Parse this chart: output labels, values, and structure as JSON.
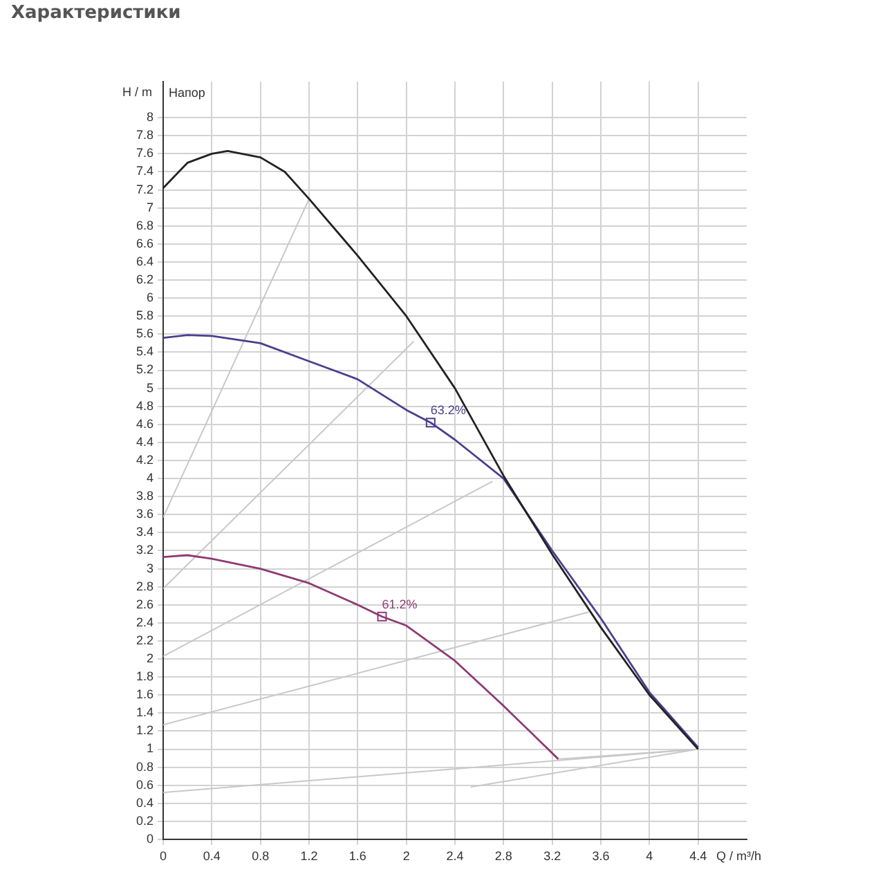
{
  "chart_data": {
    "type": "line",
    "title": "Характеристики",
    "xlabel": "Q / m³/h",
    "ylabel": "H / m",
    "xlim": [
      0,
      4.8
    ],
    "ylim": [
      0,
      8.4
    ],
    "xticks": [
      0,
      0.4,
      0.8,
      1.2,
      1.6,
      2,
      2.4,
      2.8,
      3.2,
      3.6,
      4,
      4.4
    ],
    "yticks": [
      0,
      0.2,
      0.4,
      0.6,
      0.8,
      1,
      1.2,
      1.4,
      1.6,
      1.8,
      2,
      2.2,
      2.4,
      2.6,
      2.8,
      3,
      3.2,
      3.4,
      3.6,
      3.8,
      4,
      4.2,
      4.4,
      4.6,
      4.8,
      5,
      5.2,
      5.4,
      5.6,
      5.8,
      6,
      6.2,
      6.4,
      6.6,
      6.8,
      7,
      7.2,
      7.4,
      7.6,
      7.8,
      8
    ],
    "grid": true,
    "marker": "none",
    "line_style": "solid",
    "series": [
      {
        "color": "#222222",
        "x": [
          0,
          0.2,
          0.4,
          0.53,
          0.8,
          1,
          1.2,
          1.6,
          2,
          2.4,
          2.8,
          3.2,
          3.6,
          4,
          4.4
        ],
        "values": [
          7.22,
          7.5,
          7.6,
          7.63,
          7.56,
          7.4,
          7.1,
          6.47,
          5.8,
          5,
          4.03,
          3.16,
          2.35,
          1.6,
          1
        ]
      },
      {
        "color": "#4a3f8f",
        "x": [
          0,
          0.2,
          0.4,
          0.8,
          1.2,
          1.6,
          2,
          2.2,
          2.4,
          2.8,
          3.2,
          3.6,
          4,
          4.4
        ],
        "values": [
          5.56,
          5.59,
          5.58,
          5.5,
          5.3,
          5.1,
          4.76,
          4.62,
          4.43,
          4,
          3.2,
          2.45,
          1.63,
          1.02
        ]
      },
      {
        "color": "#8e3a73",
        "x": [
          0,
          0.2,
          0.4,
          0.8,
          1.2,
          1.6,
          1.8,
          2,
          2.4,
          2.8,
          3.25
        ],
        "values": [
          3.13,
          3.15,
          3.11,
          3,
          2.84,
          2.6,
          2.47,
          2.37,
          1.98,
          1.48,
          0.89
        ]
      },
      {
        "color": "#c8c8c8",
        "x": [
          0,
          1.2
        ],
        "values": [
          3.57,
          7.1
        ]
      },
      {
        "color": "#c8c8c8",
        "x": [
          0,
          2.06
        ],
        "values": [
          2.78,
          5.52
        ]
      },
      {
        "color": "#c8c8c8",
        "x": [
          0,
          2.71
        ],
        "values": [
          2.03,
          3.97
        ]
      },
      {
        "color": "#c8c8c8",
        "x": [
          0,
          3.5
        ],
        "values": [
          1.27,
          2.52
        ]
      },
      {
        "color": "#c8c8c8",
        "x": [
          0,
          4.4
        ],
        "values": [
          0.52,
          1
        ]
      },
      {
        "color": "#c8c8c8",
        "x": [
          2.53,
          4.4
        ],
        "values": [
          0.58,
          1
        ]
      },
      {
        "color": "#c8c8c8",
        "x": [
          3.25,
          4.4
        ],
        "values": [
          0.89,
          1
        ]
      }
    ],
    "annotations": [
      "Напор",
      {
        "text": "63.2%",
        "x": 2.2,
        "y": 4.62
      },
      {
        "text": "61.2%",
        "x": 1.8,
        "y": 2.47
      }
    ]
  }
}
